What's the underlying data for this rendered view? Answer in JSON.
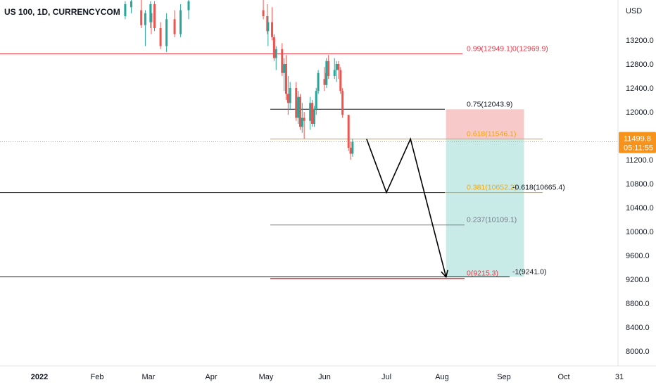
{
  "header": {
    "symbol_title": "US 100, 1D, CURRENCYCOM",
    "currency": "USD"
  },
  "chart_data": {
    "type": "candlestick",
    "title": "US 100, 1D, CURRENCYCOM",
    "yunit": "USD",
    "ylim": [
      7800,
      13900
    ],
    "y_ticks": [
      "13200.0",
      "12800.0",
      "12400.0",
      "12000.0",
      "11600.0",
      "11200.0",
      "10800.0",
      "10400.0",
      "10000.0",
      "9600.0",
      "9200.0",
      "8800.0",
      "8400.0",
      "8000.0"
    ],
    "x_ticks": [
      "2022",
      "Feb",
      "Mar",
      "Apr",
      "May",
      "Jun",
      "Jul",
      "Aug",
      "Sep",
      "Oct",
      "31"
    ],
    "candles": [
      {
        "date": "Feb 15",
        "o": 13600,
        "h": 13850,
        "l": 13550,
        "c": 13800
      },
      {
        "date": "Feb 18",
        "o": 13750,
        "h": 13900,
        "l": 13650,
        "c": 13850
      },
      {
        "date": "Feb 23",
        "o": 13700,
        "h": 13900,
        "l": 13400,
        "c": 13450
      },
      {
        "date": "Feb 25",
        "o": 13450,
        "h": 13700,
        "l": 13100,
        "c": 13650
      },
      {
        "date": "Feb 28",
        "o": 13650,
        "h": 13800,
        "l": 13300,
        "c": 13500
      },
      {
        "date": "Mar 2",
        "o": 13500,
        "h": 13850,
        "l": 13400,
        "c": 13800
      },
      {
        "date": "Mar 4",
        "o": 13800,
        "h": 13850,
        "l": 13350,
        "c": 13400
      },
      {
        "date": "Mar 7",
        "o": 13400,
        "h": 13500,
        "l": 13050,
        "c": 13100
      },
      {
        "date": "Mar 10",
        "o": 13100,
        "h": 13650,
        "l": 13000,
        "c": 13550
      },
      {
        "date": "Mar 14",
        "o": 13550,
        "h": 13700,
        "l": 13250,
        "c": 13300
      },
      {
        "date": "Mar 17",
        "o": 13300,
        "h": 13800,
        "l": 13250,
        "c": 13700
      },
      {
        "date": "Mar 21",
        "o": 13700,
        "h": 13900,
        "l": 13550,
        "c": 13850
      },
      {
        "date": "Apr 27",
        "o": 13700,
        "h": 13900,
        "l": 13550,
        "c": 13600
      },
      {
        "date": "Apr 29",
        "o": 13600,
        "h": 13800,
        "l": 13300,
        "c": 13350
      },
      {
        "date": "May 2",
        "o": 13350,
        "h": 13600,
        "l": 13100,
        "c": 13500
      },
      {
        "date": "May 4",
        "o": 13500,
        "h": 13750,
        "l": 13200,
        "c": 13250
      },
      {
        "date": "May 5",
        "o": 13250,
        "h": 13300,
        "l": 12850,
        "c": 12900
      },
      {
        "date": "May 6",
        "o": 12900,
        "h": 13100,
        "l": 12700,
        "c": 13050
      },
      {
        "date": "May 9",
        "o": 13050,
        "h": 13150,
        "l": 12600,
        "c": 12650
      },
      {
        "date": "May 10",
        "o": 12650,
        "h": 12900,
        "l": 12350,
        "c": 12800
      },
      {
        "date": "May 11",
        "o": 12800,
        "h": 12950,
        "l": 12200,
        "c": 12300
      },
      {
        "date": "May 12",
        "o": 12300,
        "h": 12600,
        "l": 11950,
        "c": 12150
      },
      {
        "date": "May 13",
        "o": 12150,
        "h": 12500,
        "l": 12050,
        "c": 12400
      },
      {
        "date": "May 16",
        "o": 12400,
        "h": 12500,
        "l": 11850,
        "c": 11900
      },
      {
        "date": "May 17",
        "o": 11900,
        "h": 12350,
        "l": 11800,
        "c": 12250
      },
      {
        "date": "May 18",
        "o": 12250,
        "h": 12300,
        "l": 11700,
        "c": 11750
      },
      {
        "date": "May 19",
        "o": 11750,
        "h": 12150,
        "l": 11650,
        "c": 11900
      },
      {
        "date": "May 20",
        "o": 11900,
        "h": 12000,
        "l": 11550,
        "c": 11850
      },
      {
        "date": "May 23",
        "o": 11850,
        "h": 12250,
        "l": 11700,
        "c": 12150
      },
      {
        "date": "May 24",
        "o": 12150,
        "h": 12200,
        "l": 11750,
        "c": 11800
      },
      {
        "date": "May 25",
        "o": 11800,
        "h": 12100,
        "l": 11750,
        "c": 12050
      },
      {
        "date": "May 26",
        "o": 12050,
        "h": 12400,
        "l": 11950,
        "c": 12350
      },
      {
        "date": "May 27",
        "o": 12350,
        "h": 12700,
        "l": 12300,
        "c": 12650
      },
      {
        "date": "May 31",
        "o": 12650,
        "h": 12800,
        "l": 12450,
        "c": 12550
      },
      {
        "date": "Jun 1",
        "o": 12550,
        "h": 12750,
        "l": 12350,
        "c": 12450
      },
      {
        "date": "Jun 2",
        "o": 12450,
        "h": 12900,
        "l": 12400,
        "c": 12850
      },
      {
        "date": "Jun 3",
        "o": 12850,
        "h": 12950,
        "l": 12550,
        "c": 12600
      },
      {
        "date": "Jun 6",
        "o": 12600,
        "h": 12900,
        "l": 12550,
        "c": 12700
      },
      {
        "date": "Jun 7",
        "o": 12700,
        "h": 12850,
        "l": 12500,
        "c": 12800
      },
      {
        "date": "Jun 8",
        "o": 12800,
        "h": 12850,
        "l": 12550,
        "c": 12700
      },
      {
        "date": "Jun 9",
        "o": 12700,
        "h": 12750,
        "l": 12300,
        "c": 12350
      },
      {
        "date": "Jun 10",
        "o": 12350,
        "h": 12400,
        "l": 11900,
        "c": 11950
      },
      {
        "date": "Jun 13",
        "o": 11950,
        "h": 11950,
        "l": 11350,
        "c": 11400
      },
      {
        "date": "Jun 14",
        "o": 11400,
        "h": 11500,
        "l": 11200,
        "c": 11300
      },
      {
        "date": "Jun 15",
        "o": 11300,
        "h": 11550,
        "l": 11250,
        "c": 11499.8
      }
    ],
    "horizontal_lines": [
      {
        "y": 13900,
        "color": "#787b86"
      },
      {
        "y": 12969.9,
        "color": "#f23645"
      },
      {
        "y": 12043.9,
        "color": "#131722"
      },
      {
        "y": 11546.1,
        "color": "#f7a600"
      },
      {
        "y": 10652.2,
        "color": "#131722"
      },
      {
        "y": 10652.2,
        "color": "#f7a600"
      },
      {
        "y": 10109.1,
        "color": "#787b86"
      },
      {
        "y": 9241.0,
        "color": "#131722"
      },
      {
        "y": 9215.3,
        "color": "#f23645"
      }
    ],
    "fib_labels": [
      {
        "text": "0.99(12949.1)",
        "y": 12969.9,
        "color": "#f23645"
      },
      {
        "text": "0(12969.9)",
        "y": 12969.9,
        "color": "#f23645"
      },
      {
        "text": "0.75(12043.9)",
        "y": 12043.9,
        "color": "#131722"
      },
      {
        "text": "0.618(11546.1)",
        "y": 11546.1,
        "color": "#f7a600"
      },
      {
        "text": "0.381(10652.2)",
        "y": 10652.2,
        "color": "#f7a600"
      },
      {
        "text": "-0.618(10665.4)",
        "y": 10652.2,
        "color": "#131722"
      },
      {
        "text": "0.237(10109.1)",
        "y": 10109.1,
        "color": "#787b86"
      },
      {
        "text": "0(9215.3)",
        "y": 9215.3,
        "color": "#f23645"
      },
      {
        "text": "-1(9241.0)",
        "y": 9241.0,
        "color": "#131722"
      }
    ],
    "position_box": {
      "entry": 11546.1,
      "stop": 12043.9,
      "target": 9241.0,
      "risk_color": "#f7c9c9",
      "reward_color": "#c9ebe8"
    },
    "projection_path": [
      {
        "date": "Jun 22",
        "y": 11546.1
      },
      {
        "date": "Jul 1",
        "y": 10652.2
      },
      {
        "date": "Jul 13",
        "y": 11546.1
      },
      {
        "date": "Aug 3",
        "y": 9241.0
      }
    ],
    "current_price": {
      "value": "11499.8",
      "countdown": "05:11:55",
      "color": "#f7931a"
    },
    "colors": {
      "up": "#26a69a",
      "down": "#ef5350",
      "text": "#131722",
      "grid": "#d1d4dc"
    }
  }
}
